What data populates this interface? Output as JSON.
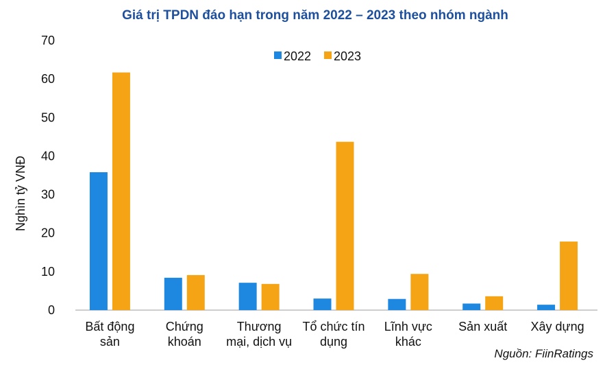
{
  "chart_data": {
    "type": "bar",
    "title": "Giá trị TPDN đáo hạn trong năm 2022 – 2023 theo nhóm ngành",
    "ylabel": "Nghìn tỷ VNĐ",
    "xlabel": "",
    "ylim": [
      0,
      70
    ],
    "yticks": [
      0,
      10,
      20,
      30,
      40,
      50,
      60,
      70
    ],
    "grid": false,
    "legend_position": "top-center",
    "categories": [
      [
        "Bất động",
        "sản"
      ],
      [
        "Chứng",
        "khoán"
      ],
      [
        "Thương",
        "mại, dịch vụ"
      ],
      [
        "Tổ chức tín",
        "dụng"
      ],
      [
        "Lĩnh vực",
        "khác"
      ],
      [
        "Sản xuất"
      ],
      [
        "Xây dựng"
      ]
    ],
    "series": [
      {
        "name": "2022",
        "color": "#1e88e0",
        "values": [
          35.8,
          8.4,
          7.1,
          3.0,
          2.9,
          1.7,
          1.4
        ]
      },
      {
        "name": "2023",
        "color": "#f5a416",
        "values": [
          61.7,
          9.1,
          6.8,
          43.7,
          9.4,
          3.6,
          17.8
        ]
      }
    ],
    "source": "Nguồn: FiinRatings",
    "title_color": "#1d4f9c"
  }
}
